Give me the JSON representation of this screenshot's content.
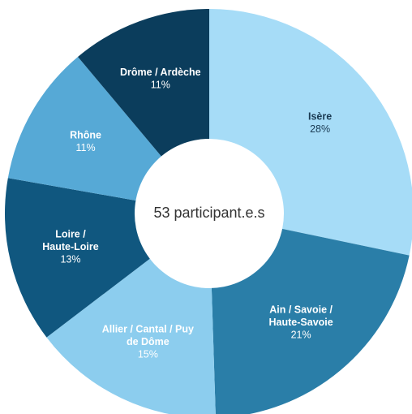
{
  "chart_data": {
    "type": "pie",
    "donut": true,
    "center_label": "53 participant.e.s",
    "slices": [
      {
        "label_lines": [
          "Isère"
        ],
        "percent_label": "28%",
        "value": 28,
        "color": "#a6dcf7",
        "text_color": "#1a3a52"
      },
      {
        "label_lines": [
          "Ain / Savoie /",
          "Haute-Savoie"
        ],
        "percent_label": "21%",
        "value": 21,
        "color": "#2a7ea8",
        "text_color": "#ffffff"
      },
      {
        "label_lines": [
          "Allier / Cantal / Puy",
          "de Dôme"
        ],
        "percent_label": "15%",
        "value": 15,
        "color": "#8ccdee",
        "text_color": "#ffffff"
      },
      {
        "label_lines": [
          "Loire /",
          "Haute-Loire"
        ],
        "percent_label": "13%",
        "value": 13,
        "color": "#10577f",
        "text_color": "#ffffff"
      },
      {
        "label_lines": [
          "Rhône"
        ],
        "percent_label": "11%",
        "value": 11,
        "color": "#56a9d6",
        "text_color": "#ffffff"
      },
      {
        "label_lines": [
          "Drôme / Ardèche"
        ],
        "percent_label": "11%",
        "value": 11,
        "color": "#0b3d5c",
        "text_color": "#ffffff"
      }
    ]
  }
}
